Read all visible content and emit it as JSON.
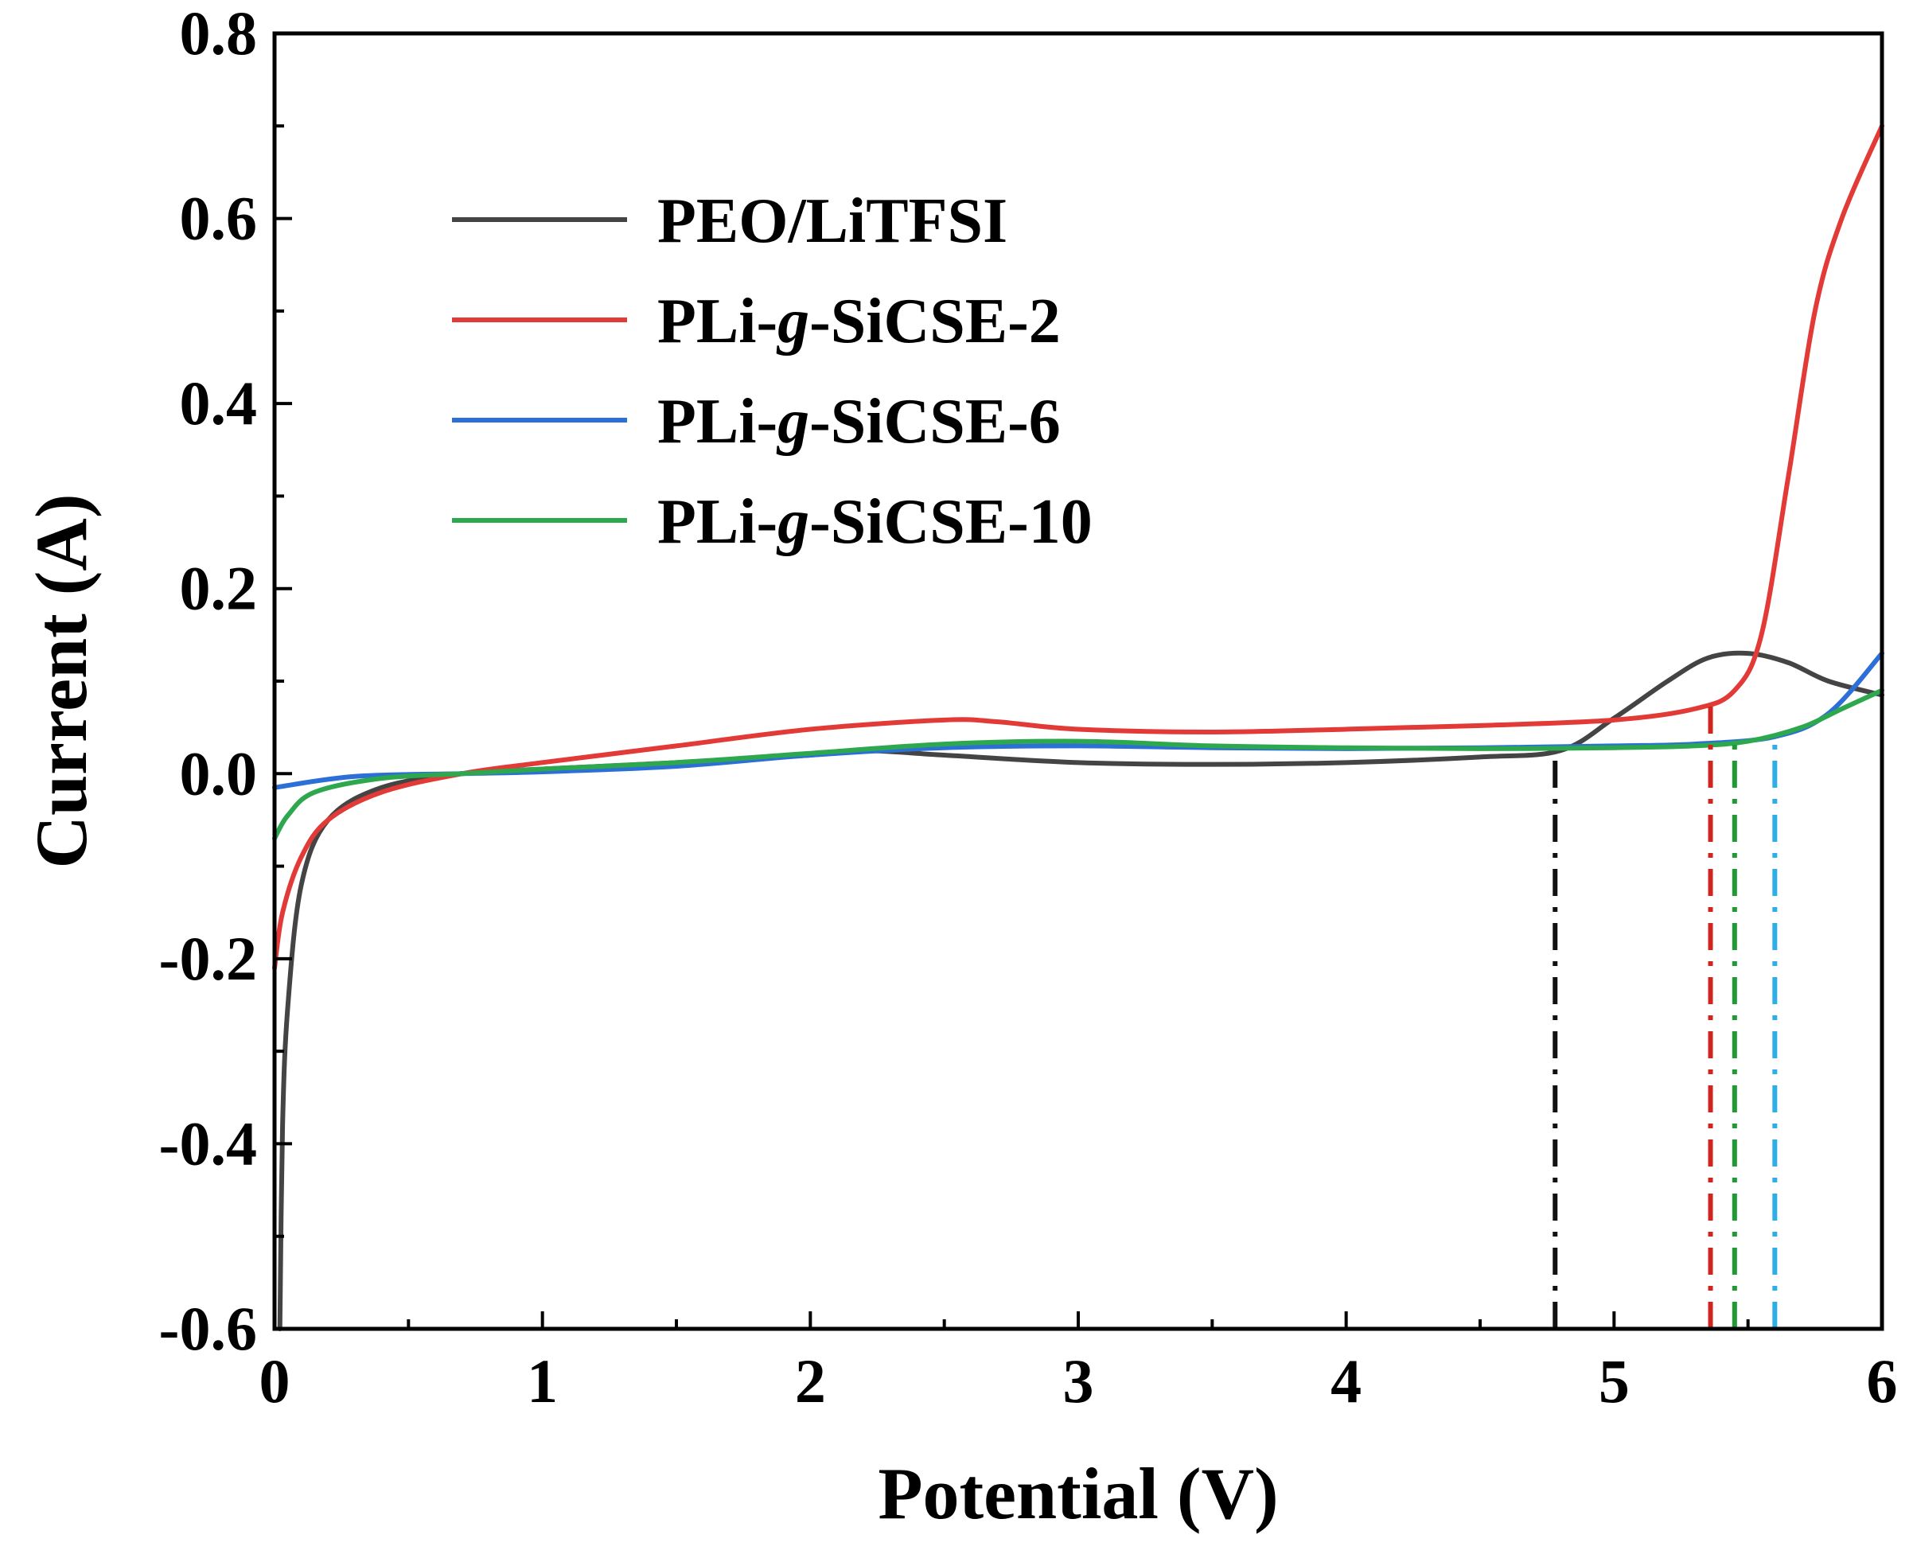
{
  "chart_data": {
    "type": "line",
    "title": "",
    "xlabel": "Potential (V)",
    "ylabel": "Current (A)",
    "xlim": [
      0,
      6
    ],
    "ylim": [
      -0.6,
      0.8
    ],
    "x_ticks": [
      0,
      1,
      2,
      3,
      4,
      5,
      6
    ],
    "x_tick_labels": [
      "0",
      "1",
      "2",
      "3",
      "4",
      "5",
      "6"
    ],
    "y_ticks": [
      -0.6,
      -0.4,
      -0.2,
      0.0,
      0.2,
      0.4,
      0.6,
      0.8
    ],
    "y_tick_labels": [
      "-0.6",
      "-0.4",
      "-0.2",
      "0.0",
      "0.2",
      "0.4",
      "0.6",
      "0.8"
    ],
    "legend_position": "top-left",
    "series": [
      {
        "name": "PEO/LiTFSI",
        "label_parts": [
          "PEO/LiTFSI"
        ],
        "color": "#444444",
        "points": [
          [
            0.02,
            -0.6
          ],
          [
            0.03,
            -0.38
          ],
          [
            0.05,
            -0.25
          ],
          [
            0.1,
            -0.12
          ],
          [
            0.2,
            -0.05
          ],
          [
            0.4,
            -0.015
          ],
          [
            0.7,
            0.0
          ],
          [
            1.0,
            0.005
          ],
          [
            1.5,
            0.012
          ],
          [
            2.0,
            0.02
          ],
          [
            2.2,
            0.025
          ],
          [
            2.5,
            0.02
          ],
          [
            3.0,
            0.012
          ],
          [
            3.5,
            0.01
          ],
          [
            4.0,
            0.012
          ],
          [
            4.5,
            0.018
          ],
          [
            4.8,
            0.025
          ],
          [
            5.0,
            0.06
          ],
          [
            5.2,
            0.1
          ],
          [
            5.35,
            0.125
          ],
          [
            5.5,
            0.13
          ],
          [
            5.65,
            0.12
          ],
          [
            5.8,
            0.1
          ],
          [
            6.0,
            0.085
          ]
        ]
      },
      {
        "name": "PLi-g-SiCSE-2",
        "label_parts": [
          "PLi-",
          "g",
          "-SiCSE-2"
        ],
        "color": "#e23a36",
        "points": [
          [
            0.0,
            -0.21
          ],
          [
            0.03,
            -0.15
          ],
          [
            0.1,
            -0.09
          ],
          [
            0.2,
            -0.05
          ],
          [
            0.4,
            -0.02
          ],
          [
            0.7,
            0.0
          ],
          [
            1.0,
            0.012
          ],
          [
            1.5,
            0.03
          ],
          [
            2.0,
            0.048
          ],
          [
            2.5,
            0.058
          ],
          [
            2.7,
            0.056
          ],
          [
            3.0,
            0.048
          ],
          [
            3.5,
            0.045
          ],
          [
            4.0,
            0.048
          ],
          [
            4.5,
            0.052
          ],
          [
            5.0,
            0.058
          ],
          [
            5.3,
            0.07
          ],
          [
            5.45,
            0.09
          ],
          [
            5.55,
            0.15
          ],
          [
            5.65,
            0.32
          ],
          [
            5.75,
            0.5
          ],
          [
            5.85,
            0.6
          ],
          [
            6.0,
            0.7
          ]
        ]
      },
      {
        "name": "PLi-g-SiCSE-6",
        "label_parts": [
          "PLi-",
          "g",
          "-SiCSE-6"
        ],
        "color": "#2c6fd6",
        "points": [
          [
            0.0,
            -0.015
          ],
          [
            0.3,
            -0.003
          ],
          [
            0.7,
            0.0
          ],
          [
            1.0,
            0.002
          ],
          [
            1.5,
            0.008
          ],
          [
            2.0,
            0.02
          ],
          [
            2.5,
            0.028
          ],
          [
            3.0,
            0.03
          ],
          [
            3.5,
            0.028
          ],
          [
            4.0,
            0.027
          ],
          [
            4.5,
            0.028
          ],
          [
            5.0,
            0.03
          ],
          [
            5.3,
            0.032
          ],
          [
            5.6,
            0.04
          ],
          [
            5.8,
            0.065
          ],
          [
            6.0,
            0.13
          ]
        ]
      },
      {
        "name": "PLi-g-SiCSE-10",
        "label_parts": [
          "PLi-",
          "g",
          "-SiCSE-10"
        ],
        "color": "#2ea84e",
        "points": [
          [
            0.0,
            -0.07
          ],
          [
            0.05,
            -0.045
          ],
          [
            0.15,
            -0.02
          ],
          [
            0.4,
            -0.005
          ],
          [
            0.7,
            0.0
          ],
          [
            1.0,
            0.005
          ],
          [
            1.5,
            0.012
          ],
          [
            2.0,
            0.022
          ],
          [
            2.5,
            0.032
          ],
          [
            3.0,
            0.035
          ],
          [
            3.5,
            0.03
          ],
          [
            4.0,
            0.028
          ],
          [
            4.5,
            0.027
          ],
          [
            5.0,
            0.028
          ],
          [
            5.3,
            0.03
          ],
          [
            5.5,
            0.035
          ],
          [
            5.7,
            0.05
          ],
          [
            5.85,
            0.07
          ],
          [
            6.0,
            0.09
          ]
        ]
      }
    ],
    "onset_markers": [
      {
        "name": "PEO/LiTFSI",
        "x": 4.78,
        "y_top": 0.025,
        "color": "#111111"
      },
      {
        "name": "PLi-g-SiCSE-2",
        "x": 5.36,
        "y_top": 0.075,
        "color": "#d0241f"
      },
      {
        "name": "PLi-g-SiCSE-10",
        "x": 5.45,
        "y_top": 0.035,
        "color": "#1f9a35"
      },
      {
        "name": "PLi-g-SiCSE-6",
        "x": 5.6,
        "y_top": 0.04,
        "color": "#2eaee8"
      }
    ]
  }
}
